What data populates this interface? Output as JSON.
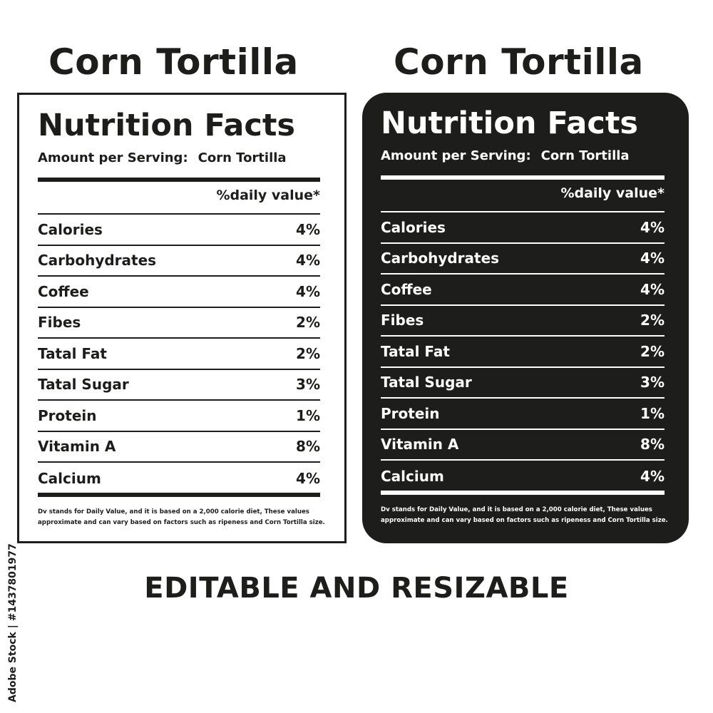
{
  "heading": "Corn Tortilla",
  "label": {
    "title": "Nutrition Facts",
    "serving_label": "Amount per Serving:",
    "serving_value": "Corn Tortilla",
    "daily_value_header": "%daily value*",
    "rows": [
      {
        "name": "Calories",
        "value": "4%"
      },
      {
        "name": "Carbohydrates",
        "value": "4%"
      },
      {
        "name": "Coffee",
        "value": "4%"
      },
      {
        "name": "Fibes",
        "value": "2%"
      },
      {
        "name": "Tatal Fat",
        "value": "2%"
      },
      {
        "name": "Tatal Sugar",
        "value": "3%"
      },
      {
        "name": "Protein",
        "value": "1%"
      },
      {
        "name": "Vitamin A",
        "value": "8%"
      },
      {
        "name": "Calcium",
        "value": "4%"
      }
    ],
    "footnote": "Dv stands for Daily Value, and it is based on a 2,000 calorie diet, These values approximate and can vary based on factors such as ripeness and Corn Tortilla size."
  },
  "bottom_text": "EDITABLE AND RESIZABLE",
  "side_credit": "Adobe Stock | #1437801977",
  "colors": {
    "ink": "#1d1d1b",
    "paper": "#ffffff"
  }
}
